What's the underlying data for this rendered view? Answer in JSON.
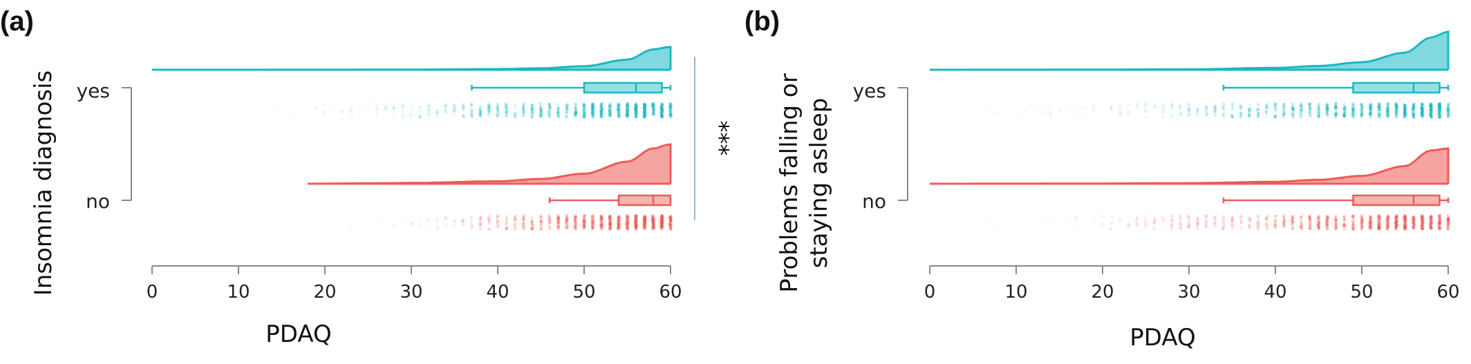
{
  "colors": {
    "yes": "#1ab8c2",
    "no": "#ee5a55",
    "axis": "#888888",
    "sigline": "#8fb8d8"
  },
  "chart_data": [
    {
      "panel": "(a)",
      "type": "raincloud",
      "xlabel": "PDAQ",
      "ylabel": "Insomnia diagnosis",
      "xlim": [
        0,
        60
      ],
      "xticks": [
        "0",
        "10",
        "20",
        "30",
        "40",
        "50",
        "60"
      ],
      "significance": "***",
      "series": [
        {
          "name": "yes",
          "color": "#1ab8c2",
          "box": {
            "min": 37,
            "q1": 50,
            "median": 56,
            "q3": 59,
            "max": 60
          },
          "density_from": 0,
          "density_points": [
            [
              0,
              0.0
            ],
            [
              10,
              0.001
            ],
            [
              20,
              0.003
            ],
            [
              30,
              0.008
            ],
            [
              40,
              0.03
            ],
            [
              45,
              0.06
            ],
            [
              50,
              0.15
            ],
            [
              55,
              0.42
            ],
            [
              58,
              0.85
            ],
            [
              60,
              0.95
            ]
          ],
          "points_min": 10
        },
        {
          "name": "no",
          "color": "#ee5a55",
          "box": {
            "min": 46,
            "q1": 54,
            "median": 58,
            "q3": 60,
            "max": 60
          },
          "density_from": 18,
          "density_points": [
            [
              18,
              0.0
            ],
            [
              25,
              0.01
            ],
            [
              30,
              0.02
            ],
            [
              40,
              0.06
            ],
            [
              45,
              0.12
            ],
            [
              50,
              0.25
            ],
            [
              55,
              0.55
            ],
            [
              58,
              0.88
            ],
            [
              60,
              0.98
            ]
          ],
          "points_min": 18
        }
      ]
    },
    {
      "panel": "(b)",
      "type": "raincloud",
      "xlabel": "PDAQ",
      "ylabel_line1": "Problems falling or",
      "ylabel_line2": "staying asleep",
      "xlim": [
        0,
        60
      ],
      "xticks": [
        "0",
        "10",
        "20",
        "30",
        "40",
        "50",
        "60"
      ],
      "series": [
        {
          "name": "yes",
          "color": "#1ab8c2",
          "box": {
            "min": 34,
            "q1": 49,
            "median": 56,
            "q3": 59,
            "max": 60
          },
          "density_from": 0,
          "density_points": [
            [
              0,
              0.0
            ],
            [
              10,
              0.002
            ],
            [
              20,
              0.005
            ],
            [
              30,
              0.012
            ],
            [
              40,
              0.05
            ],
            [
              45,
              0.1
            ],
            [
              50,
              0.2
            ],
            [
              55,
              0.45
            ],
            [
              58,
              0.85
            ],
            [
              60,
              1.0
            ]
          ],
          "points_min": 0
        },
        {
          "name": "no",
          "color": "#ee5a55",
          "box": {
            "min": 34,
            "q1": 49,
            "median": 56,
            "q3": 59,
            "max": 60
          },
          "density_from": 0,
          "density_points": [
            [
              0,
              0.0
            ],
            [
              10,
              0.002
            ],
            [
              20,
              0.006
            ],
            [
              30,
              0.015
            ],
            [
              40,
              0.05
            ],
            [
              45,
              0.1
            ],
            [
              50,
              0.2
            ],
            [
              55,
              0.45
            ],
            [
              58,
              0.85
            ],
            [
              60,
              0.9
            ]
          ],
          "points_min": 0
        }
      ]
    }
  ]
}
